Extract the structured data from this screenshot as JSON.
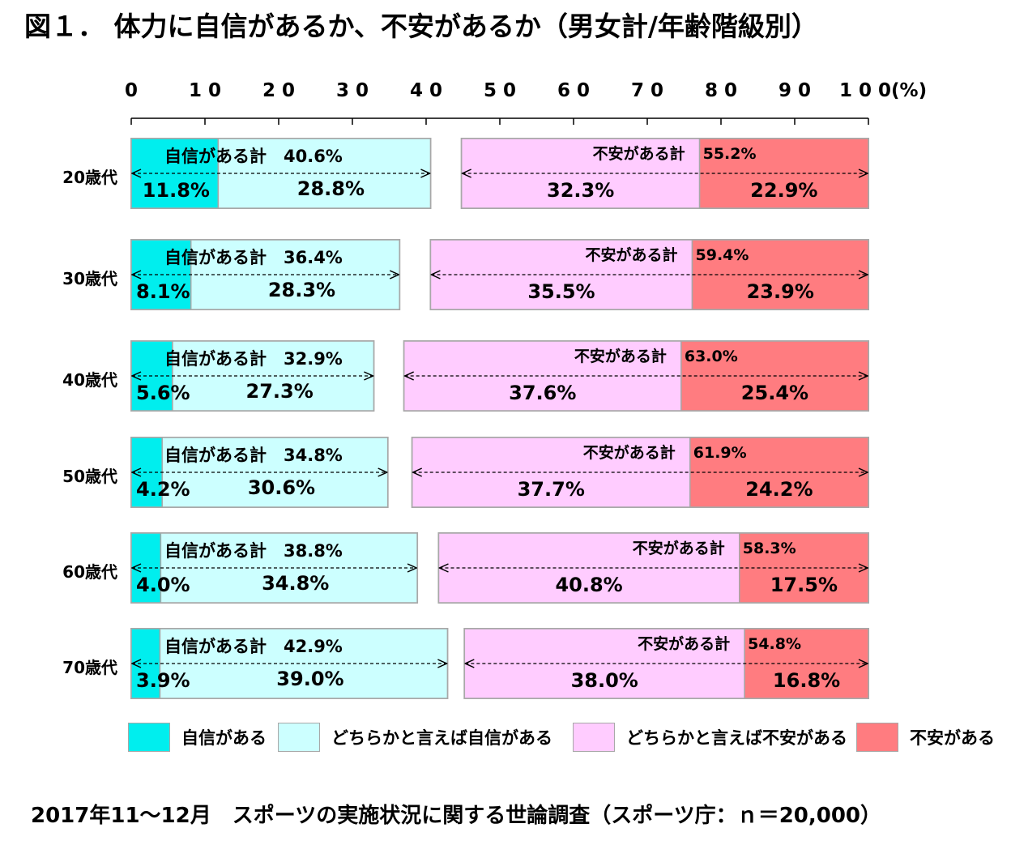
{
  "title": "図１． 体力に自信があるか、不安があるか（男女計/年齢階級別）",
  "source": "2017年11～12月　スポーツの実施状況に関する世論調査（スポーツ庁：ｎ＝20,000）",
  "colors": {
    "jishin_aru": "#00eeee",
    "dochiraka_jishin": "#ccffff",
    "dochiraka_fuan": "#ffccff",
    "fuan_aru": "#ff7c80"
  },
  "chart_data": {
    "type": "bar",
    "orientation": "horizontal",
    "stacked": "diverging",
    "axis": {
      "ticks": [
        "0",
        "10",
        "20",
        "30",
        "40",
        "50",
        "60",
        "70",
        "80",
        "90",
        "100(%)"
      ],
      "range": [
        0,
        100
      ]
    },
    "categories": [
      "20歳代",
      "30歳代",
      "40歳代",
      "50歳代",
      "60歳代",
      "70歳代"
    ],
    "series": [
      {
        "name": "自信がある",
        "values": [
          11.8,
          8.1,
          5.6,
          4.2,
          4.0,
          3.9
        ],
        "labels": [
          "11.8%",
          "8.1%",
          "5.6%",
          "4.2%",
          "4.0%",
          "3.9%"
        ]
      },
      {
        "name": "どちらかと言えば自信がある",
        "values": [
          28.8,
          28.3,
          27.3,
          30.6,
          34.8,
          39.0
        ],
        "labels": [
          "28.8%",
          "28.3%",
          "27.3%",
          "30.6%",
          "34.8%",
          "39.0%"
        ]
      },
      {
        "name": "どちらかと言えば不安がある",
        "values": [
          32.3,
          35.5,
          37.6,
          37.7,
          40.8,
          38.0
        ],
        "labels": [
          "32.3%",
          "35.5%",
          "37.6%",
          "37.7%",
          "40.8%",
          "38.0%"
        ]
      },
      {
        "name": "不安がある",
        "values": [
          22.9,
          23.9,
          25.4,
          24.2,
          17.5,
          16.8
        ],
        "labels": [
          "22.9%",
          "23.9%",
          "25.4%",
          "24.2%",
          "17.5%",
          "16.8%"
        ]
      }
    ],
    "totals": {
      "jishin_label": "自信がある計",
      "fuan_label": "不安がある計",
      "jishin": [
        "40.6%",
        "36.4%",
        "32.9%",
        "34.8%",
        "38.8%",
        "42.9%"
      ],
      "fuan": [
        "55.2%",
        "59.4%",
        "63.0%",
        "61.9%",
        "58.3%",
        "54.8%"
      ]
    }
  }
}
